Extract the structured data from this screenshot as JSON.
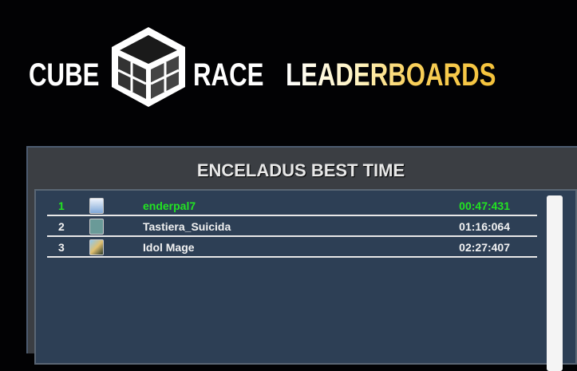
{
  "header": {
    "logo_left": "CUBE",
    "logo_right": "RACE",
    "title": "LEADERBOARDS"
  },
  "board": {
    "title": "ENCELADUS BEST TIME",
    "highlight_color": "#22e322",
    "rows": [
      {
        "rank": "1",
        "avatar": "player-avatar-icon",
        "name": "enderpal7",
        "time": "00:47:431"
      },
      {
        "rank": "2",
        "avatar": "player-avatar-icon",
        "name": "Tastiera_Suicida",
        "time": "01:16:064"
      },
      {
        "rank": "3",
        "avatar": "player-avatar-icon",
        "name": "Idol Mage",
        "time": "02:27:407"
      }
    ]
  }
}
